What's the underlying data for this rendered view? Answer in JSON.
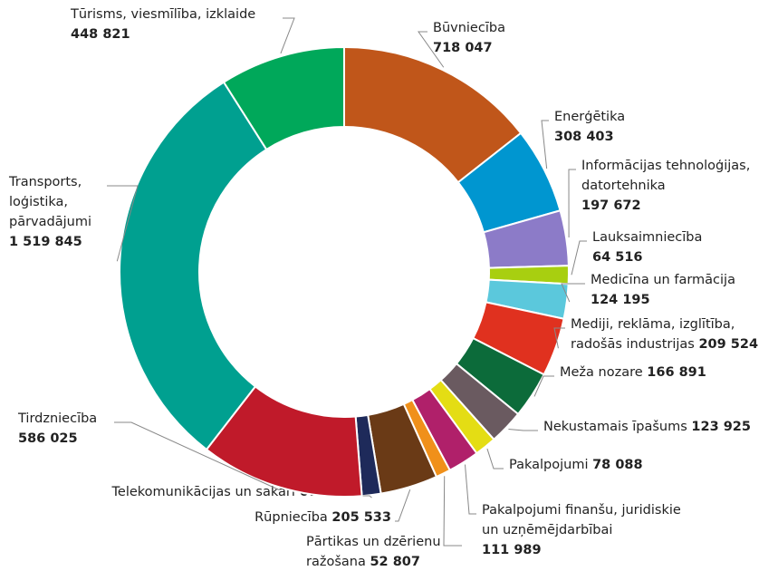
{
  "chart_data": {
    "type": "donut",
    "categories": [
      [
        "Būvniecība"
      ],
      [
        "Enerģētika"
      ],
      [
        "Informācijas tehnoloģijas,",
        "datortehnika"
      ],
      [
        "Lauksaimniecība"
      ],
      [
        "Medicīna un farmācija"
      ],
      [
        "Mediji, reklāma, izglītība,",
        "radošās industrijas"
      ],
      [
        "Meža nozare"
      ],
      [
        "Nekustamais īpašums"
      ],
      [
        "Pakalpojumi"
      ],
      [
        "Pakalpojumi finanšu, juridiskie",
        "un uzņēmējdarbībai"
      ],
      [
        "Pārtikas un dzērienu",
        "ražošana"
      ],
      [
        "Rūpniecība"
      ],
      [
        "Telekomunikācijas un sakari"
      ],
      [
        "Tirdzniecība"
      ],
      [
        "Transports,",
        "loģistika,",
        "pārvadājumi"
      ],
      [
        "Tūrisms, viesmīlība, izklaide"
      ]
    ],
    "values": [
      718047,
      308403,
      197672,
      64516,
      124195,
      209524,
      166891,
      123925,
      78088,
      111989,
      52807,
      205533,
      67767,
      586025,
      1519845,
      448821
    ],
    "value_labels": [
      "718 047",
      "308 403",
      "197 672",
      "64 516",
      "124 195",
      "209 524",
      "166 891",
      "123 925",
      "78 088",
      "111 989",
      "52 807",
      "205 533",
      "67 767",
      "586 025",
      "1 519 845",
      "448 821"
    ],
    "colors": [
      "#c0561a",
      "#0096d0",
      "#8c7bc8",
      "#a8cf10",
      "#5bc8dc",
      "#e0311f",
      "#0c6b3a",
      "#6a5a60",
      "#e4dd14",
      "#b0206a",
      "#f0901a",
      "#6a3a16",
      "#1e2a5a",
      "#c01a2a",
      "#00a090",
      "#00a85a"
    ]
  }
}
